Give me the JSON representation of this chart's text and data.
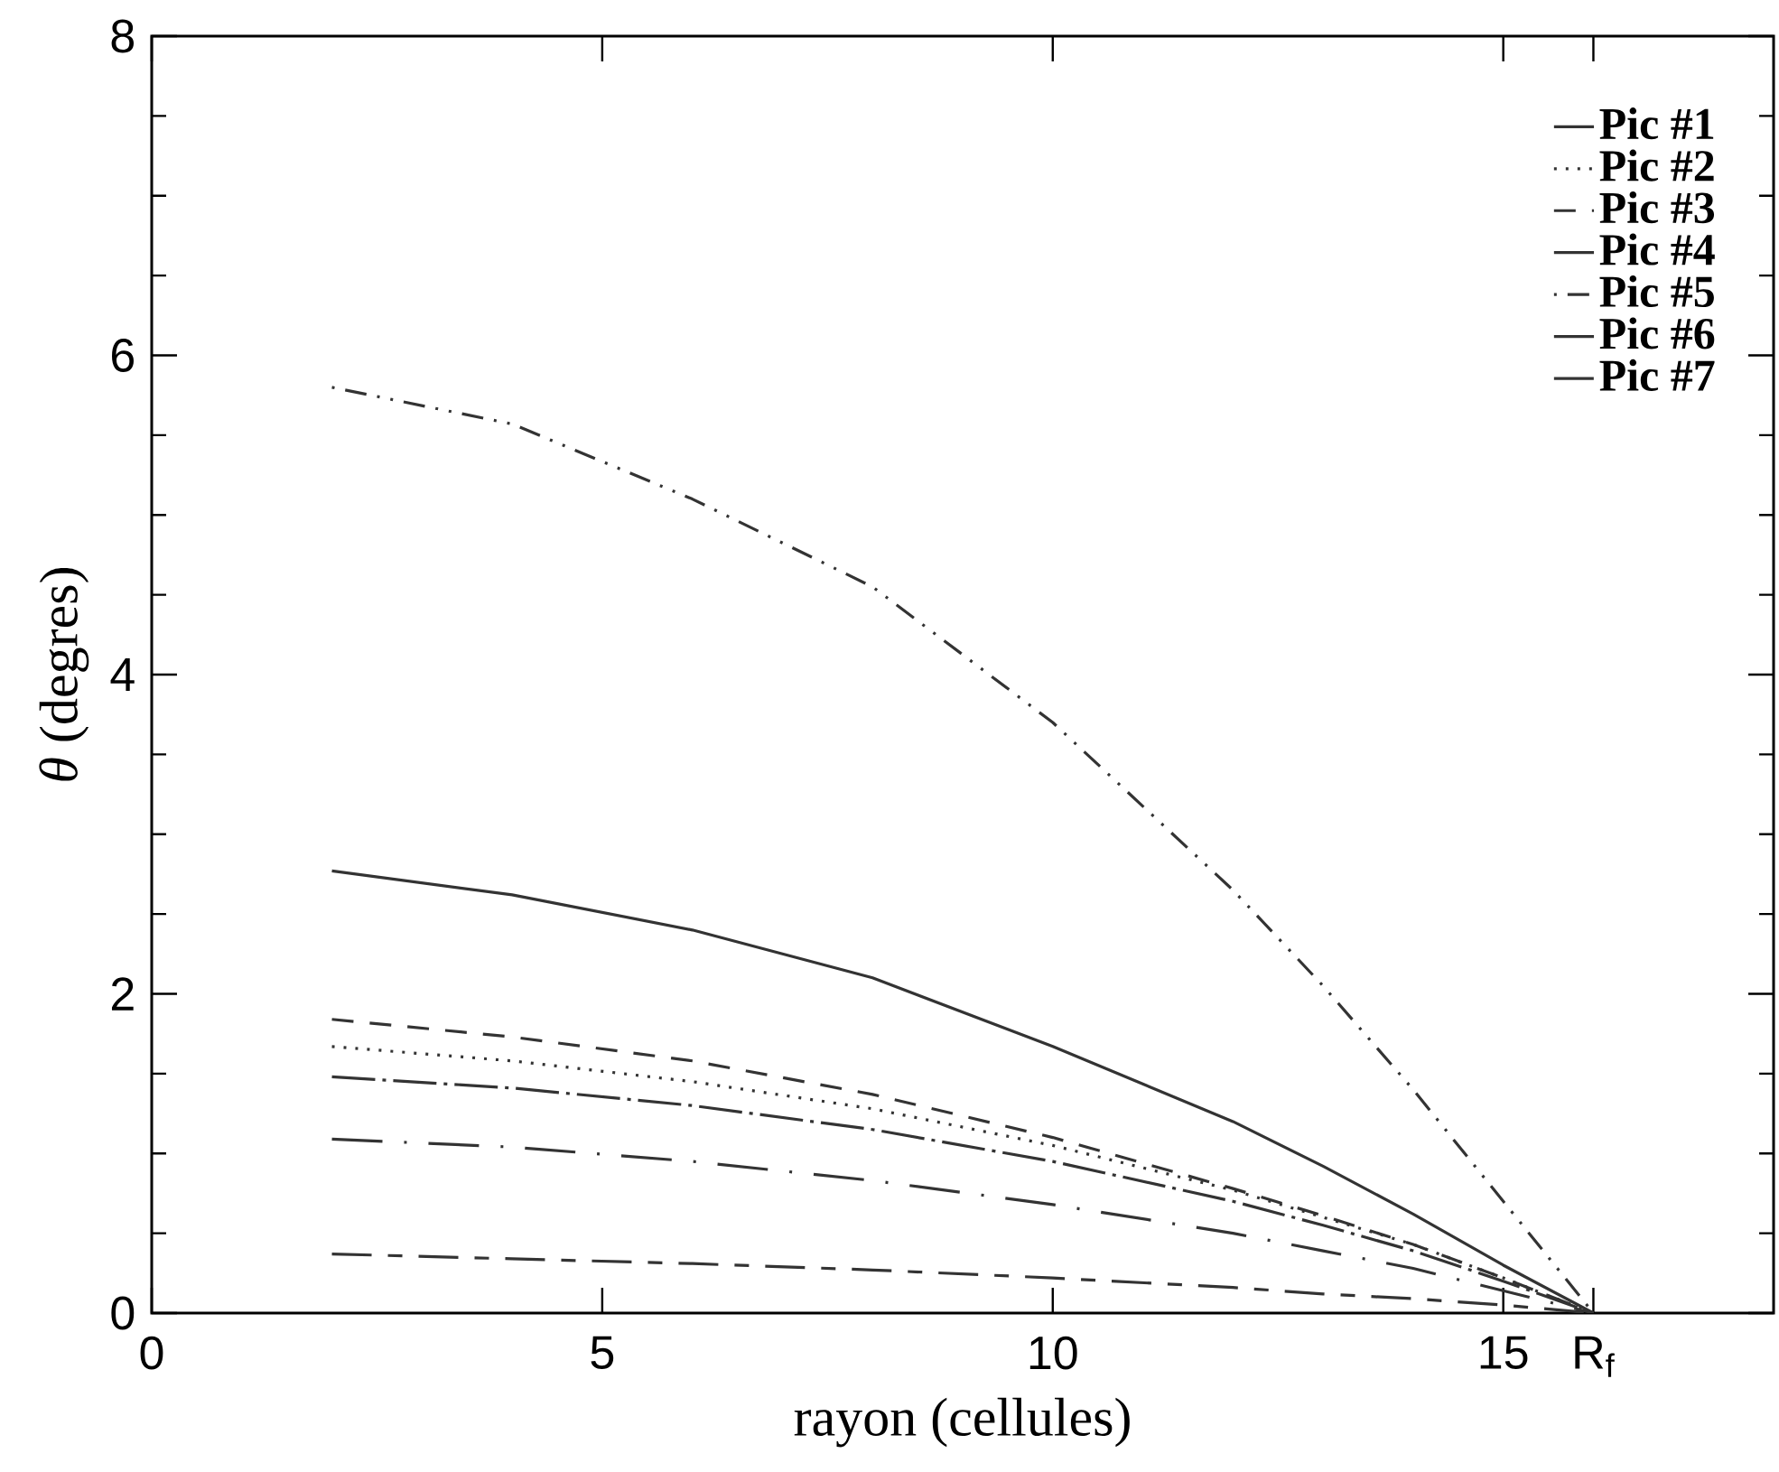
{
  "chart_data": {
    "type": "line",
    "xlabel": "rayon (cellules)",
    "ylabel": "*θ* (degres)",
    "x": [
      2,
      4,
      6,
      8,
      10,
      12,
      13,
      14,
      15,
      16
    ],
    "xlim": [
      0,
      18
    ],
    "ylim": [
      0,
      8
    ],
    "xticks": [
      0,
      5,
      10,
      15,
      {
        "value": 16,
        "label": "R$_{f}$"
      }
    ],
    "yticks": [
      0,
      2,
      4,
      6,
      8
    ],
    "legend": "top right",
    "grid": false,
    "series": [
      {
        "name": "Pic #1",
        "color": "#333333",
        "line_style": "solid",
        "values": [
          2.77,
          2.62,
          2.4,
          2.1,
          1.67,
          1.2,
          0.92,
          0.62,
          0.3,
          0
        ]
      },
      {
        "name": "Pic #2",
        "color": "#333333",
        "line_style": "dotted",
        "values": [
          1.67,
          1.58,
          1.45,
          1.28,
          1.05,
          0.77,
          0.6,
          0.43,
          0.22,
          0
        ]
      },
      {
        "name": "Pic #3",
        "color": "#333333",
        "line_style": "dashed",
        "values": [
          1.84,
          1.73,
          1.58,
          1.37,
          1.1,
          0.78,
          0.61,
          0.43,
          0.22,
          0
        ]
      },
      {
        "name": "Pic #4",
        "color": "#333333",
        "line_style": "longdashdot",
        "values": [
          1.09,
          1.04,
          0.95,
          0.83,
          0.68,
          0.5,
          0.39,
          0.28,
          0.14,
          0
        ]
      },
      {
        "name": "Pic #5",
        "color": "#333333",
        "line_style": "dashdotdot",
        "values": [
          5.8,
          5.57,
          5.1,
          4.55,
          3.7,
          2.65,
          2.05,
          1.4,
          0.7,
          0
        ]
      },
      {
        "name": "Pic #6",
        "color": "#333333",
        "line_style": "dashdot",
        "values": [
          1.48,
          1.41,
          1.3,
          1.15,
          0.95,
          0.7,
          0.55,
          0.39,
          0.2,
          0
        ]
      },
      {
        "name": "Pic #7",
        "color": "#333333",
        "line_style": "longshortdash",
        "values": [
          0.37,
          0.34,
          0.31,
          0.27,
          0.22,
          0.16,
          0.12,
          0.09,
          0.05,
          0
        ]
      }
    ]
  }
}
